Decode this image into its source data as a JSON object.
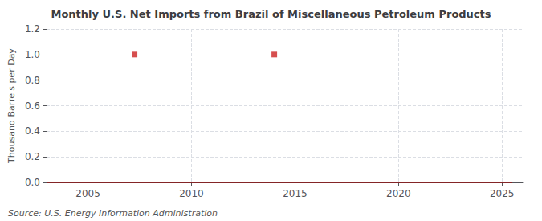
{
  "chart_data": {
    "type": "line",
    "title": "Monthly U.S. Net Imports from Brazil of Miscellaneous Petroleum Products",
    "ylabel": "Thousand Barrels per Day",
    "annotations": [
      "Source: U.S. Energy Information Administration"
    ],
    "series": [
      {
        "type": "line",
        "color": "#aa0000",
        "x": [
          2003.0,
          2025.5
        ],
        "values": [
          0.0,
          0.0
        ]
      },
      {
        "type": "scatter",
        "color": "#cc2222",
        "marker": "square",
        "x": [
          2007.25,
          2014.0
        ],
        "values": [
          1.0,
          1.0
        ]
      }
    ],
    "xlim": [
      2003,
      2026
    ],
    "xticks": [
      2005,
      2010,
      2015,
      2020,
      2025
    ],
    "ylim": [
      0,
      1.2
    ],
    "yticks": [
      {
        "value": 0,
        "label": "0.0"
      },
      0.2,
      0.4,
      0.6,
      0.8,
      {
        "value": 1,
        "label": "1.0"
      },
      1.2
    ],
    "grid": true
  }
}
